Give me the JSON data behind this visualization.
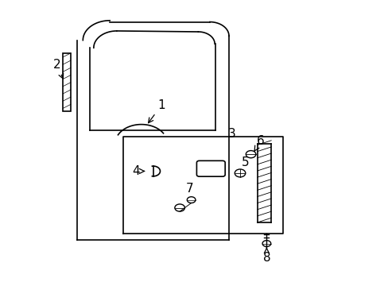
{
  "background_color": "#ffffff",
  "line_color": "#000000",
  "label_color": "#000000",
  "font_size": 11
}
